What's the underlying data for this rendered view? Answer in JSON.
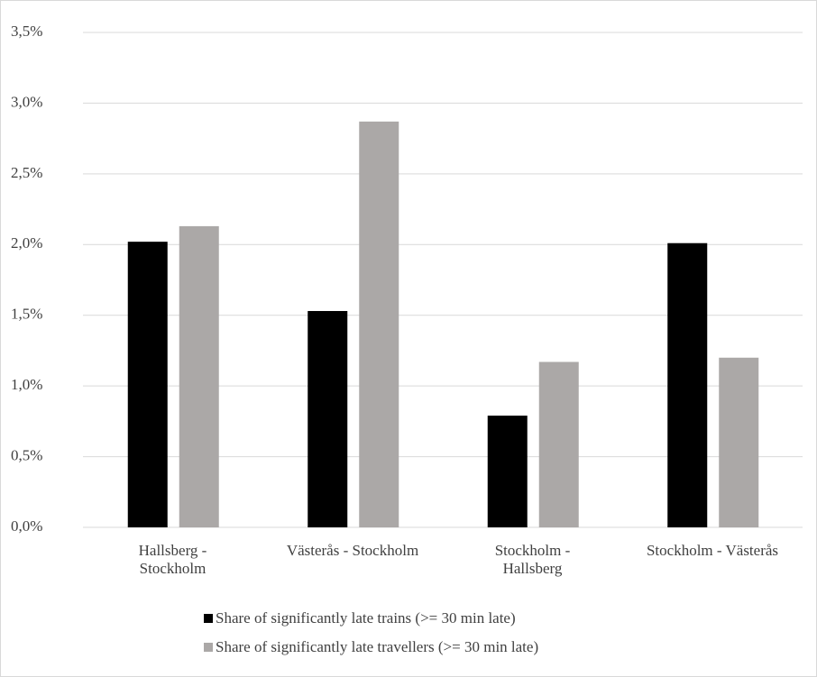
{
  "chart_data": {
    "type": "bar",
    "categories": [
      "Hallsberg -\nStockholm",
      "Västerås - Stockholm",
      "Stockholm -\nHallsberg",
      "Stockholm - Västerås"
    ],
    "series": [
      {
        "name": "Share of significantly late trains (>= 30 min late)",
        "color": "#000000",
        "values": [
          2.02,
          1.53,
          0.79,
          2.01
        ]
      },
      {
        "name": "Share of significantly late travellers (>= 30 min late)",
        "color": "#aba8a7",
        "values": [
          2.13,
          2.87,
          1.17,
          1.2
        ]
      }
    ],
    "ylim": [
      0,
      3.5
    ],
    "yticks": [
      {
        "value": 0,
        "label": "0,0%"
      },
      {
        "value": 0.5,
        "label": "0,5%"
      },
      {
        "value": 1,
        "label": "1,0%"
      },
      {
        "value": 1.5,
        "label": "1,5%"
      },
      {
        "value": 2,
        "label": "2,0%"
      },
      {
        "value": 2.5,
        "label": "2,5%"
      },
      {
        "value": 3,
        "label": "3,0%"
      },
      {
        "value": 3.5,
        "label": "3,5%"
      }
    ],
    "grid": true,
    "legend": "bottom"
  }
}
